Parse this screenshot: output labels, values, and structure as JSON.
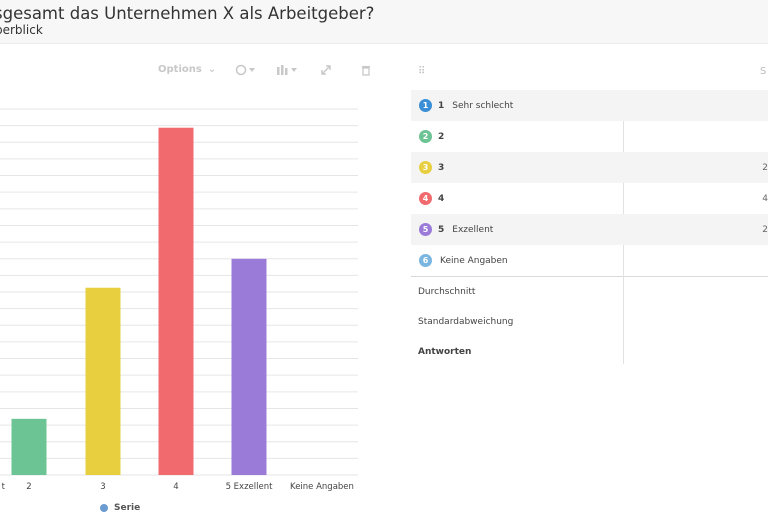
{
  "header": {
    "title": "sgesamt das Unternehmen X als Arbeitgeber?",
    "subtitle": "berblick"
  },
  "toolbar": {
    "options_label": "Options"
  },
  "chart_data": {
    "type": "bar",
    "categories": [
      "1 Sehr schlecht",
      "2",
      "3",
      "4",
      "5 Exzellent",
      "Keine Angaben"
    ],
    "tick_labels": [
      "t",
      "2",
      "3",
      "4",
      "5 Exzellent",
      "Keine Angaben"
    ],
    "values": [
      0,
      3.3,
      11,
      20.4,
      12.7,
      0
    ],
    "colors": [
      "#3a8fd6",
      "#6cc393",
      "#e8cf3f",
      "#f06a6e",
      "#9b7bd8",
      "#7ab6e0"
    ],
    "ylim": [
      0,
      21.5
    ],
    "grid": true,
    "legend": {
      "label": "Serie",
      "position": "bottom"
    }
  },
  "table": {
    "rows": [
      {
        "badge": "1",
        "color": "#3a8fd6",
        "num": "1",
        "label": "Sehr schlecht",
        "value": ""
      },
      {
        "badge": "2",
        "color": "#6cc393",
        "num": "2",
        "label": "",
        "value": ""
      },
      {
        "badge": "3",
        "color": "#e8cf3f",
        "num": "3",
        "label": "",
        "value": "2"
      },
      {
        "badge": "4",
        "color": "#f06a6e",
        "num": "4",
        "label": "",
        "value": "4"
      },
      {
        "badge": "5",
        "color": "#9b7bd8",
        "num": "5",
        "label": "Exzellent",
        "value": "2"
      },
      {
        "badge": "6",
        "color": "#7ab6e0",
        "num": "",
        "label": "Keine Angaben",
        "value": ""
      }
    ],
    "stats": {
      "mean": "Durchschnitt",
      "std": "Standardabweichung",
      "answers": "Antworten"
    }
  }
}
